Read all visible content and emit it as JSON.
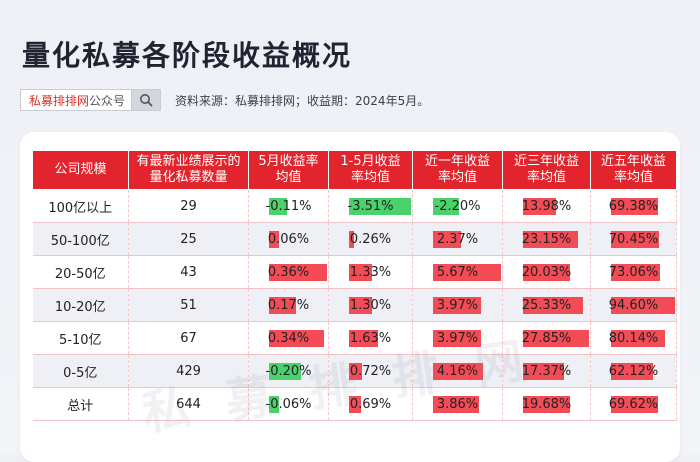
{
  "title": "量化私募各阶段收益概况",
  "source": {
    "brand": "私募排排网",
    "brand_suffix": "公众号",
    "note": "资料来源：私募排排网；收益期：2024年5月。"
  },
  "watermark": "私募排排网",
  "table": {
    "headers": [
      "公司规模",
      "有最新业绩展示的量化私募数量",
      "5月收益率均值",
      "1-5月收益率均值",
      "近一年收益率均值",
      "近三年收益率均值",
      "近五年收益率均值"
    ],
    "rows": [
      {
        "cells": [
          "100亿以上",
          "29",
          "-0.11%",
          "-3.51%",
          "-2.20%",
          "13.98%",
          "69.38%"
        ],
        "vals": [
          -0.11,
          -3.51,
          -2.2,
          13.98,
          69.38
        ]
      },
      {
        "cells": [
          "50-100亿",
          "25",
          "0.06%",
          "0.26%",
          "2.37%",
          "23.15%",
          "70.45%"
        ],
        "vals": [
          0.06,
          0.26,
          2.37,
          23.15,
          70.45
        ]
      },
      {
        "cells": [
          "20-50亿",
          "43",
          "0.36%",
          "1.33%",
          "5.67%",
          "20.03%",
          "73.06%"
        ],
        "vals": [
          0.36,
          1.33,
          5.67,
          20.03,
          73.06
        ]
      },
      {
        "cells": [
          "10-20亿",
          "51",
          "0.17%",
          "1.30%",
          "3.97%",
          "25.33%",
          "94.60%"
        ],
        "vals": [
          0.17,
          1.3,
          3.97,
          25.33,
          94.6
        ]
      },
      {
        "cells": [
          "5-10亿",
          "67",
          "0.34%",
          "1.63%",
          "3.97%",
          "27.85%",
          "80.14%"
        ],
        "vals": [
          0.34,
          1.63,
          3.97,
          27.85,
          80.14
        ]
      },
      {
        "cells": [
          "0-5亿",
          "429",
          "-0.20%",
          "0.72%",
          "4.16%",
          "17.37%",
          "62.12%"
        ],
        "vals": [
          -0.2,
          0.72,
          4.16,
          17.37,
          62.12
        ]
      },
      {
        "cells": [
          "总计",
          "644",
          "-0.06%",
          "0.69%",
          "3.86%",
          "19.68%",
          "69.62%"
        ],
        "vals": [
          -0.06,
          0.69,
          3.86,
          19.68,
          69.62
        ]
      }
    ]
  }
}
